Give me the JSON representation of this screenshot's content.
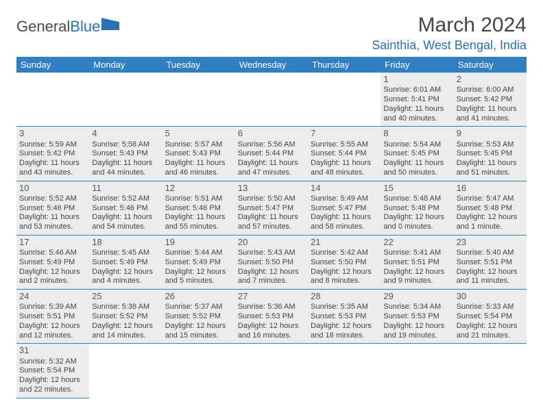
{
  "logo": {
    "word1": "General",
    "word2": "Blue"
  },
  "header": {
    "title": "March 2024",
    "location": "Sainthia, West Bengal, India"
  },
  "colors": {
    "brand": "#2f7fc2",
    "logo_blue": "#2871b8",
    "row_bg": "#ececec"
  },
  "weekdays": [
    "Sunday",
    "Monday",
    "Tuesday",
    "Wednesday",
    "Thursday",
    "Friday",
    "Saturday"
  ],
  "weeks": [
    [
      null,
      null,
      null,
      null,
      null,
      {
        "d": "1",
        "sr": "Sunrise: 6:01 AM",
        "ss": "Sunset: 5:41 PM",
        "dl1": "Daylight: 11 hours",
        "dl2": "and 40 minutes."
      },
      {
        "d": "2",
        "sr": "Sunrise: 6:00 AM",
        "ss": "Sunset: 5:42 PM",
        "dl1": "Daylight: 11 hours",
        "dl2": "and 41 minutes."
      }
    ],
    [
      {
        "d": "3",
        "sr": "Sunrise: 5:59 AM",
        "ss": "Sunset: 5:42 PM",
        "dl1": "Daylight: 11 hours",
        "dl2": "and 43 minutes."
      },
      {
        "d": "4",
        "sr": "Sunrise: 5:58 AM",
        "ss": "Sunset: 5:43 PM",
        "dl1": "Daylight: 11 hours",
        "dl2": "and 44 minutes."
      },
      {
        "d": "5",
        "sr": "Sunrise: 5:57 AM",
        "ss": "Sunset: 5:43 PM",
        "dl1": "Daylight: 11 hours",
        "dl2": "and 46 minutes."
      },
      {
        "d": "6",
        "sr": "Sunrise: 5:56 AM",
        "ss": "Sunset: 5:44 PM",
        "dl1": "Daylight: 11 hours",
        "dl2": "and 47 minutes."
      },
      {
        "d": "7",
        "sr": "Sunrise: 5:55 AM",
        "ss": "Sunset: 5:44 PM",
        "dl1": "Daylight: 11 hours",
        "dl2": "and 48 minutes."
      },
      {
        "d": "8",
        "sr": "Sunrise: 5:54 AM",
        "ss": "Sunset: 5:45 PM",
        "dl1": "Daylight: 11 hours",
        "dl2": "and 50 minutes."
      },
      {
        "d": "9",
        "sr": "Sunrise: 5:53 AM",
        "ss": "Sunset: 5:45 PM",
        "dl1": "Daylight: 11 hours",
        "dl2": "and 51 minutes."
      }
    ],
    [
      {
        "d": "10",
        "sr": "Sunrise: 5:52 AM",
        "ss": "Sunset: 5:46 PM",
        "dl1": "Daylight: 11 hours",
        "dl2": "and 53 minutes."
      },
      {
        "d": "11",
        "sr": "Sunrise: 5:52 AM",
        "ss": "Sunset: 5:46 PM",
        "dl1": "Daylight: 11 hours",
        "dl2": "and 54 minutes."
      },
      {
        "d": "12",
        "sr": "Sunrise: 5:51 AM",
        "ss": "Sunset: 5:46 PM",
        "dl1": "Daylight: 11 hours",
        "dl2": "and 55 minutes."
      },
      {
        "d": "13",
        "sr": "Sunrise: 5:50 AM",
        "ss": "Sunset: 5:47 PM",
        "dl1": "Daylight: 11 hours",
        "dl2": "and 57 minutes."
      },
      {
        "d": "14",
        "sr": "Sunrise: 5:49 AM",
        "ss": "Sunset: 5:47 PM",
        "dl1": "Daylight: 11 hours",
        "dl2": "and 58 minutes."
      },
      {
        "d": "15",
        "sr": "Sunrise: 5:48 AM",
        "ss": "Sunset: 5:48 PM",
        "dl1": "Daylight: 12 hours",
        "dl2": "and 0 minutes."
      },
      {
        "d": "16",
        "sr": "Sunrise: 5:47 AM",
        "ss": "Sunset: 5:48 PM",
        "dl1": "Daylight: 12 hours",
        "dl2": "and 1 minute."
      }
    ],
    [
      {
        "d": "17",
        "sr": "Sunrise: 5:46 AM",
        "ss": "Sunset: 5:49 PM",
        "dl1": "Daylight: 12 hours",
        "dl2": "and 2 minutes."
      },
      {
        "d": "18",
        "sr": "Sunrise: 5:45 AM",
        "ss": "Sunset: 5:49 PM",
        "dl1": "Daylight: 12 hours",
        "dl2": "and 4 minutes."
      },
      {
        "d": "19",
        "sr": "Sunrise: 5:44 AM",
        "ss": "Sunset: 5:49 PM",
        "dl1": "Daylight: 12 hours",
        "dl2": "and 5 minutes."
      },
      {
        "d": "20",
        "sr": "Sunrise: 5:43 AM",
        "ss": "Sunset: 5:50 PM",
        "dl1": "Daylight: 12 hours",
        "dl2": "and 7 minutes."
      },
      {
        "d": "21",
        "sr": "Sunrise: 5:42 AM",
        "ss": "Sunset: 5:50 PM",
        "dl1": "Daylight: 12 hours",
        "dl2": "and 8 minutes."
      },
      {
        "d": "22",
        "sr": "Sunrise: 5:41 AM",
        "ss": "Sunset: 5:51 PM",
        "dl1": "Daylight: 12 hours",
        "dl2": "and 9 minutes."
      },
      {
        "d": "23",
        "sr": "Sunrise: 5:40 AM",
        "ss": "Sunset: 5:51 PM",
        "dl1": "Daylight: 12 hours",
        "dl2": "and 11 minutes."
      }
    ],
    [
      {
        "d": "24",
        "sr": "Sunrise: 5:39 AM",
        "ss": "Sunset: 5:51 PM",
        "dl1": "Daylight: 12 hours",
        "dl2": "and 12 minutes."
      },
      {
        "d": "25",
        "sr": "Sunrise: 5:38 AM",
        "ss": "Sunset: 5:52 PM",
        "dl1": "Daylight: 12 hours",
        "dl2": "and 14 minutes."
      },
      {
        "d": "26",
        "sr": "Sunrise: 5:37 AM",
        "ss": "Sunset: 5:52 PM",
        "dl1": "Daylight: 12 hours",
        "dl2": "and 15 minutes."
      },
      {
        "d": "27",
        "sr": "Sunrise: 5:36 AM",
        "ss": "Sunset: 5:53 PM",
        "dl1": "Daylight: 12 hours",
        "dl2": "and 16 minutes."
      },
      {
        "d": "28",
        "sr": "Sunrise: 5:35 AM",
        "ss": "Sunset: 5:53 PM",
        "dl1": "Daylight: 12 hours",
        "dl2": "and 18 minutes."
      },
      {
        "d": "29",
        "sr": "Sunrise: 5:34 AM",
        "ss": "Sunset: 5:53 PM",
        "dl1": "Daylight: 12 hours",
        "dl2": "and 19 minutes."
      },
      {
        "d": "30",
        "sr": "Sunrise: 5:33 AM",
        "ss": "Sunset: 5:54 PM",
        "dl1": "Daylight: 12 hours",
        "dl2": "and 21 minutes."
      }
    ],
    [
      {
        "d": "31",
        "sr": "Sunrise: 5:32 AM",
        "ss": "Sunset: 5:54 PM",
        "dl1": "Daylight: 12 hours",
        "dl2": "and 22 minutes."
      },
      null,
      null,
      null,
      null,
      null,
      null
    ]
  ]
}
